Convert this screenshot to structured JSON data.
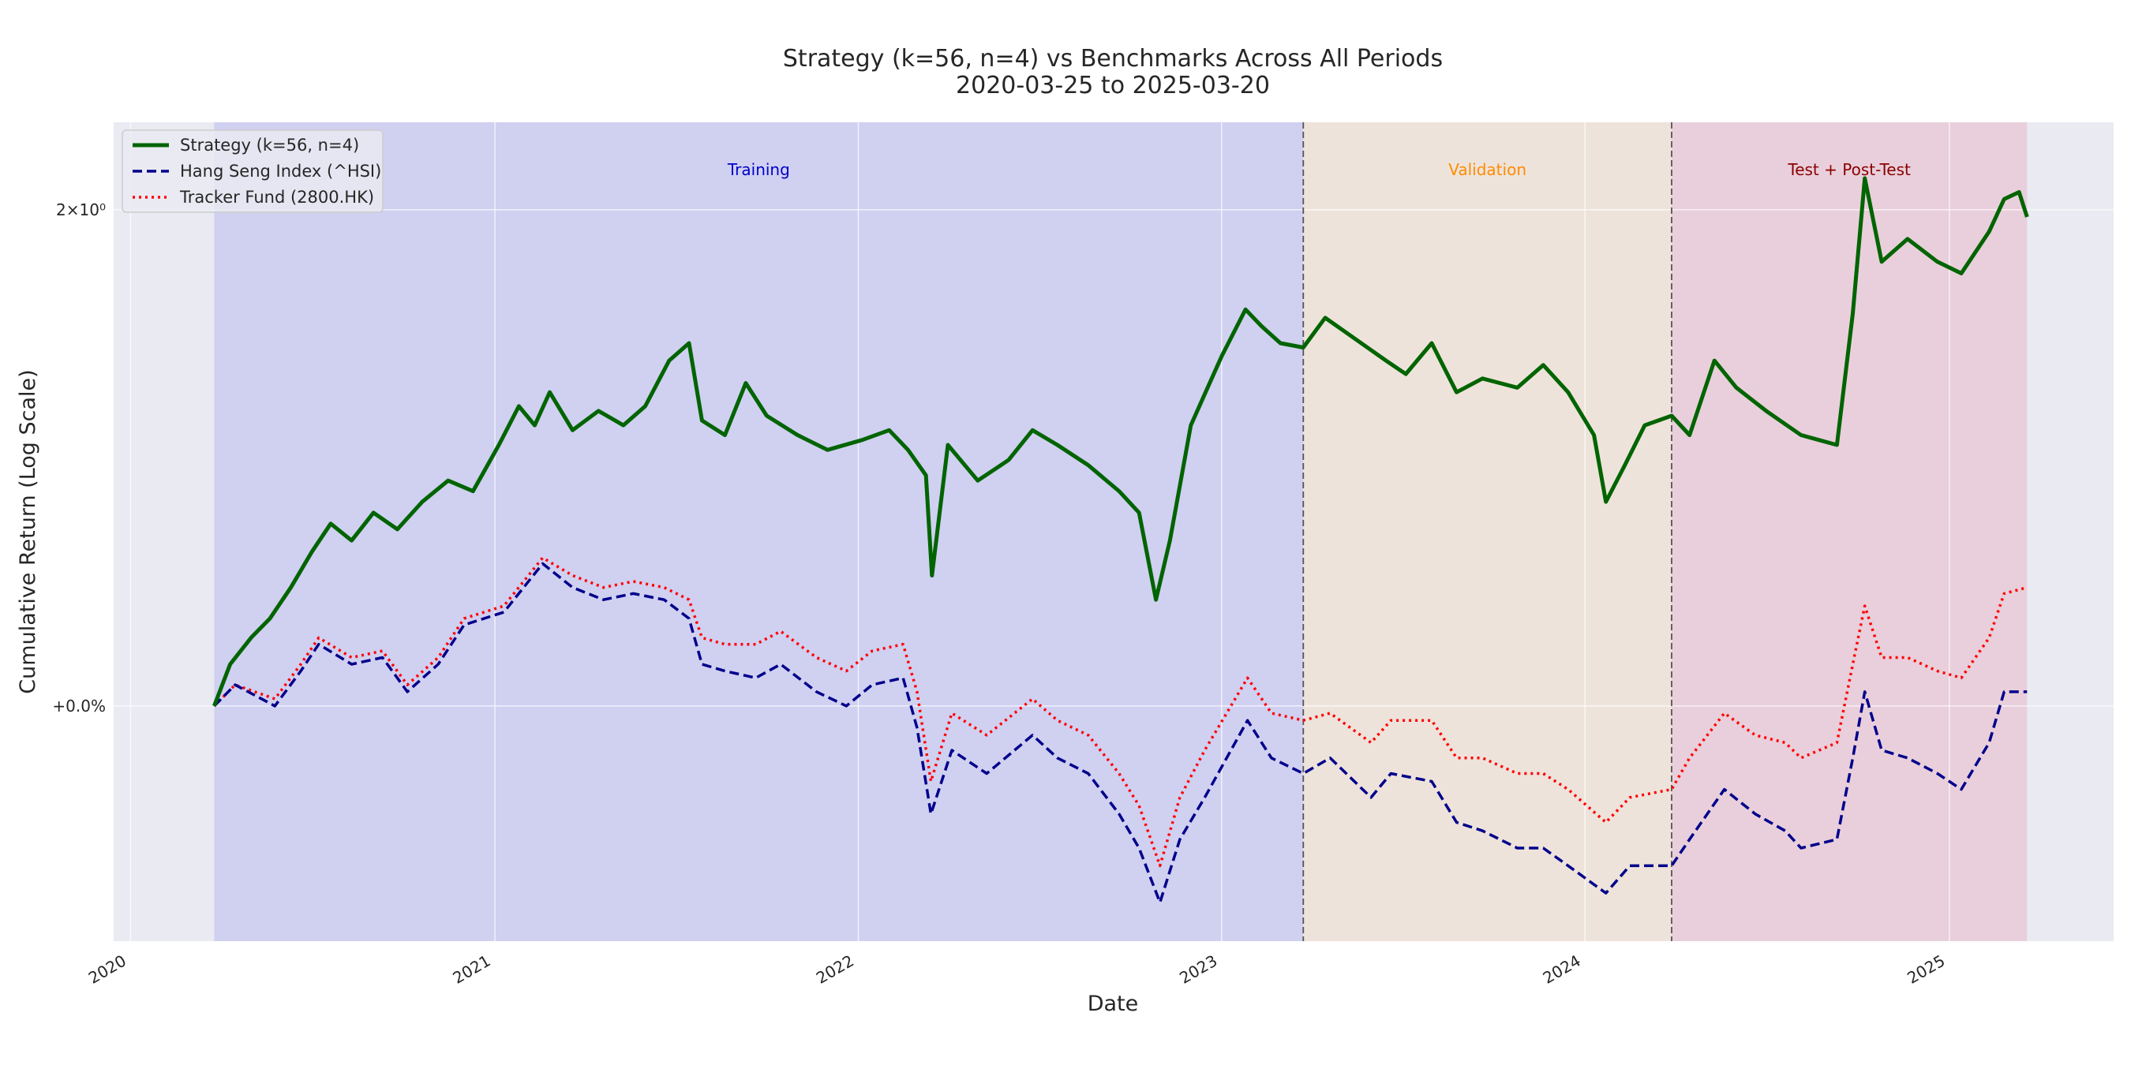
{
  "chart_data": {
    "type": "line",
    "title": "Strategy (k=56, n=4) vs Benchmarks Across All Periods",
    "subtitle": "2020-03-25 to 2025-03-20",
    "xlabel": "Date",
    "ylabel": "Cumulative Return (Log Scale)",
    "y_scale": "log",
    "xlim": [
      "2019-12-15",
      "2025-06-15"
    ],
    "ylim": [
      0.72,
      2.26
    ],
    "x_ticks": [
      "2020",
      "2021",
      "2022",
      "2023",
      "2024",
      "2025"
    ],
    "y_ticks": [
      {
        "value": 1.0,
        "label": "+0.0%"
      },
      {
        "value": 2.0,
        "label": "2×10⁰"
      }
    ],
    "grid": true,
    "legend_position": "upper-left",
    "colors": {
      "background": "#eaeaf2",
      "training": "#b9b9f0",
      "validation": "#f1dcc8",
      "test": "#e8b8c8",
      "strategy": "#006400",
      "hsi": "#00008b",
      "tracker": "#ff0000"
    },
    "periods": [
      {
        "label": "Training",
        "start": "2020-03-25",
        "end": "2023-03-24",
        "color": "#0000cc"
      },
      {
        "label": "Validation",
        "start": "2023-03-24",
        "end": "2024-03-28",
        "color": "#ff8c00"
      },
      {
        "label": "Test + Post-Test",
        "start": "2024-03-28",
        "end": "2025-03-20",
        "color": "#8b0000"
      }
    ],
    "period_boundaries": [
      "2023-03-24",
      "2024-03-28"
    ],
    "series": [
      {
        "name": "Strategy (k=56, n=4)",
        "style": "solid",
        "points": [
          [
            "2020-03-25",
            1.0
          ],
          [
            "2020-04-10",
            1.06
          ],
          [
            "2020-05-01",
            1.1
          ],
          [
            "2020-05-20",
            1.13
          ],
          [
            "2020-06-10",
            1.18
          ],
          [
            "2020-07-01",
            1.24
          ],
          [
            "2020-07-20",
            1.29
          ],
          [
            "2020-08-10",
            1.26
          ],
          [
            "2020-09-01",
            1.31
          ],
          [
            "2020-09-25",
            1.28
          ],
          [
            "2020-10-20",
            1.33
          ],
          [
            "2020-11-15",
            1.37
          ],
          [
            "2020-12-10",
            1.35
          ],
          [
            "2021-01-05",
            1.44
          ],
          [
            "2021-01-25",
            1.52
          ],
          [
            "2021-02-10",
            1.48
          ],
          [
            "2021-02-25",
            1.55
          ],
          [
            "2021-03-20",
            1.47
          ],
          [
            "2021-04-15",
            1.51
          ],
          [
            "2021-05-10",
            1.48
          ],
          [
            "2021-06-01",
            1.52
          ],
          [
            "2021-06-25",
            1.62
          ],
          [
            "2021-07-15",
            1.66
          ],
          [
            "2021-07-28",
            1.49
          ],
          [
            "2021-08-20",
            1.46
          ],
          [
            "2021-09-10",
            1.57
          ],
          [
            "2021-10-01",
            1.5
          ],
          [
            "2021-11-01",
            1.46
          ],
          [
            "2021-12-01",
            1.43
          ],
          [
            "2022-01-05",
            1.45
          ],
          [
            "2022-02-01",
            1.47
          ],
          [
            "2022-02-20",
            1.43
          ],
          [
            "2022-03-10",
            1.38
          ],
          [
            "2022-03-16",
            1.2
          ],
          [
            "2022-04-01",
            1.44
          ],
          [
            "2022-05-01",
            1.37
          ],
          [
            "2022-06-01",
            1.41
          ],
          [
            "2022-06-25",
            1.47
          ],
          [
            "2022-07-20",
            1.44
          ],
          [
            "2022-08-20",
            1.4
          ],
          [
            "2022-09-20",
            1.35
          ],
          [
            "2022-10-10",
            1.31
          ],
          [
            "2022-10-27",
            1.16
          ],
          [
            "2022-11-10",
            1.26
          ],
          [
            "2022-12-01",
            1.48
          ],
          [
            "2023-01-01",
            1.63
          ],
          [
            "2023-01-25",
            1.74
          ],
          [
            "2023-02-10",
            1.7
          ],
          [
            "2023-03-01",
            1.66
          ],
          [
            "2023-03-24",
            1.65
          ],
          [
            "2023-04-15",
            1.72
          ],
          [
            "2023-05-15",
            1.67
          ],
          [
            "2023-06-15",
            1.62
          ],
          [
            "2023-07-05",
            1.59
          ],
          [
            "2023-07-31",
            1.66
          ],
          [
            "2023-08-25",
            1.55
          ],
          [
            "2023-09-20",
            1.58
          ],
          [
            "2023-10-25",
            1.56
          ],
          [
            "2023-11-20",
            1.61
          ],
          [
            "2023-12-15",
            1.55
          ],
          [
            "2024-01-10",
            1.46
          ],
          [
            "2024-01-22",
            1.33
          ],
          [
            "2024-02-10",
            1.4
          ],
          [
            "2024-03-01",
            1.48
          ],
          [
            "2024-03-28",
            1.5
          ],
          [
            "2024-04-15",
            1.46
          ],
          [
            "2024-05-10",
            1.62
          ],
          [
            "2024-06-01",
            1.56
          ],
          [
            "2024-07-01",
            1.51
          ],
          [
            "2024-08-05",
            1.46
          ],
          [
            "2024-09-10",
            1.44
          ],
          [
            "2024-09-26",
            1.73
          ],
          [
            "2024-10-08",
            2.09
          ],
          [
            "2024-10-25",
            1.86
          ],
          [
            "2024-11-20",
            1.92
          ],
          [
            "2024-12-20",
            1.86
          ],
          [
            "2025-01-13",
            1.83
          ],
          [
            "2025-02-10",
            1.94
          ],
          [
            "2025-02-25",
            2.03
          ],
          [
            "2025-03-12",
            2.05
          ],
          [
            "2025-03-20",
            1.98
          ]
        ]
      },
      {
        "name": "Hang Seng Index (^HSI)",
        "style": "dashed",
        "points": [
          [
            "2020-03-25",
            1.0
          ],
          [
            "2020-04-15",
            1.03
          ],
          [
            "2020-05-25",
            1.0
          ],
          [
            "2020-06-20",
            1.05
          ],
          [
            "2020-07-08",
            1.09
          ],
          [
            "2020-08-10",
            1.06
          ],
          [
            "2020-09-10",
            1.07
          ],
          [
            "2020-10-05",
            1.02
          ],
          [
            "2020-11-05",
            1.06
          ],
          [
            "2020-12-01",
            1.12
          ],
          [
            "2021-01-10",
            1.14
          ],
          [
            "2021-02-18",
            1.22
          ],
          [
            "2021-03-20",
            1.18
          ],
          [
            "2021-04-20",
            1.16
          ],
          [
            "2021-05-20",
            1.17
          ],
          [
            "2021-06-20",
            1.16
          ],
          [
            "2021-07-15",
            1.13
          ],
          [
            "2021-07-28",
            1.06
          ],
          [
            "2021-08-20",
            1.05
          ],
          [
            "2021-09-20",
            1.04
          ],
          [
            "2021-10-15",
            1.06
          ],
          [
            "2021-11-20",
            1.02
          ],
          [
            "2021-12-20",
            1.0
          ],
          [
            "2022-01-15",
            1.03
          ],
          [
            "2022-02-15",
            1.04
          ],
          [
            "2022-03-01",
            0.97
          ],
          [
            "2022-03-15",
            0.86
          ],
          [
            "2022-04-05",
            0.94
          ],
          [
            "2022-05-10",
            0.91
          ],
          [
            "2022-06-25",
            0.96
          ],
          [
            "2022-07-20",
            0.93
          ],
          [
            "2022-08-20",
            0.91
          ],
          [
            "2022-09-20",
            0.86
          ],
          [
            "2022-10-10",
            0.82
          ],
          [
            "2022-10-31",
            0.76
          ],
          [
            "2022-11-20",
            0.83
          ],
          [
            "2022-12-15",
            0.88
          ],
          [
            "2023-01-27",
            0.98
          ],
          [
            "2023-02-20",
            0.93
          ],
          [
            "2023-03-24",
            0.91
          ],
          [
            "2023-04-20",
            0.93
          ],
          [
            "2023-05-31",
            0.88
          ],
          [
            "2023-06-20",
            0.91
          ],
          [
            "2023-07-31",
            0.9
          ],
          [
            "2023-08-25",
            0.85
          ],
          [
            "2023-09-20",
            0.84
          ],
          [
            "2023-10-25",
            0.82
          ],
          [
            "2023-11-20",
            0.82
          ],
          [
            "2023-12-15",
            0.8
          ],
          [
            "2024-01-22",
            0.77
          ],
          [
            "2024-02-15",
            0.8
          ],
          [
            "2024-03-28",
            0.8
          ],
          [
            "2024-04-15",
            0.83
          ],
          [
            "2024-05-20",
            0.89
          ],
          [
            "2024-06-20",
            0.86
          ],
          [
            "2024-07-20",
            0.84
          ],
          [
            "2024-08-05",
            0.82
          ],
          [
            "2024-09-10",
            0.83
          ],
          [
            "2024-09-26",
            0.93
          ],
          [
            "2024-10-08",
            1.02
          ],
          [
            "2024-10-25",
            0.94
          ],
          [
            "2024-11-20",
            0.93
          ],
          [
            "2024-12-20",
            0.91
          ],
          [
            "2025-01-13",
            0.89
          ],
          [
            "2025-02-10",
            0.95
          ],
          [
            "2025-02-25",
            1.02
          ],
          [
            "2025-03-20",
            1.02
          ]
        ]
      },
      {
        "name": "Tracker Fund (2800.HK)",
        "style": "dotted",
        "points": [
          [
            "2020-03-25",
            1.0
          ],
          [
            "2020-04-15",
            1.03
          ],
          [
            "2020-05-25",
            1.01
          ],
          [
            "2020-06-20",
            1.06
          ],
          [
            "2020-07-08",
            1.1
          ],
          [
            "2020-08-10",
            1.07
          ],
          [
            "2020-09-10",
            1.08
          ],
          [
            "2020-10-05",
            1.03
          ],
          [
            "2020-11-05",
            1.07
          ],
          [
            "2020-12-01",
            1.13
          ],
          [
            "2021-01-10",
            1.15
          ],
          [
            "2021-02-18",
            1.23
          ],
          [
            "2021-03-20",
            1.2
          ],
          [
            "2021-04-20",
            1.18
          ],
          [
            "2021-05-20",
            1.19
          ],
          [
            "2021-06-20",
            1.18
          ],
          [
            "2021-07-15",
            1.16
          ],
          [
            "2021-07-28",
            1.1
          ],
          [
            "2021-08-20",
            1.09
          ],
          [
            "2021-09-20",
            1.09
          ],
          [
            "2021-10-15",
            1.11
          ],
          [
            "2021-11-20",
            1.07
          ],
          [
            "2021-12-20",
            1.05
          ],
          [
            "2022-01-15",
            1.08
          ],
          [
            "2022-02-15",
            1.09
          ],
          [
            "2022-03-01",
            1.02
          ],
          [
            "2022-03-15",
            0.9
          ],
          [
            "2022-04-05",
            0.99
          ],
          [
            "2022-05-10",
            0.96
          ],
          [
            "2022-06-25",
            1.01
          ],
          [
            "2022-07-20",
            0.98
          ],
          [
            "2022-08-20",
            0.96
          ],
          [
            "2022-09-20",
            0.91
          ],
          [
            "2022-10-10",
            0.87
          ],
          [
            "2022-10-31",
            0.8
          ],
          [
            "2022-11-20",
            0.88
          ],
          [
            "2022-12-15",
            0.94
          ],
          [
            "2023-01-27",
            1.04
          ],
          [
            "2023-02-20",
            0.99
          ],
          [
            "2023-03-24",
            0.98
          ],
          [
            "2023-04-20",
            0.99
          ],
          [
            "2023-05-31",
            0.95
          ],
          [
            "2023-06-20",
            0.98
          ],
          [
            "2023-07-31",
            0.98
          ],
          [
            "2023-08-25",
            0.93
          ],
          [
            "2023-09-20",
            0.93
          ],
          [
            "2023-10-25",
            0.91
          ],
          [
            "2023-11-20",
            0.91
          ],
          [
            "2023-12-15",
            0.89
          ],
          [
            "2024-01-22",
            0.85
          ],
          [
            "2024-02-15",
            0.88
          ],
          [
            "2024-03-28",
            0.89
          ],
          [
            "2024-04-15",
            0.93
          ],
          [
            "2024-05-20",
            0.99
          ],
          [
            "2024-06-20",
            0.96
          ],
          [
            "2024-07-20",
            0.95
          ],
          [
            "2024-08-05",
            0.93
          ],
          [
            "2024-09-10",
            0.95
          ],
          [
            "2024-09-26",
            1.06
          ],
          [
            "2024-10-08",
            1.15
          ],
          [
            "2024-10-25",
            1.07
          ],
          [
            "2024-11-20",
            1.07
          ],
          [
            "2024-12-20",
            1.05
          ],
          [
            "2025-01-13",
            1.04
          ],
          [
            "2025-02-10",
            1.1
          ],
          [
            "2025-02-25",
            1.17
          ],
          [
            "2025-03-20",
            1.18
          ]
        ]
      }
    ]
  }
}
